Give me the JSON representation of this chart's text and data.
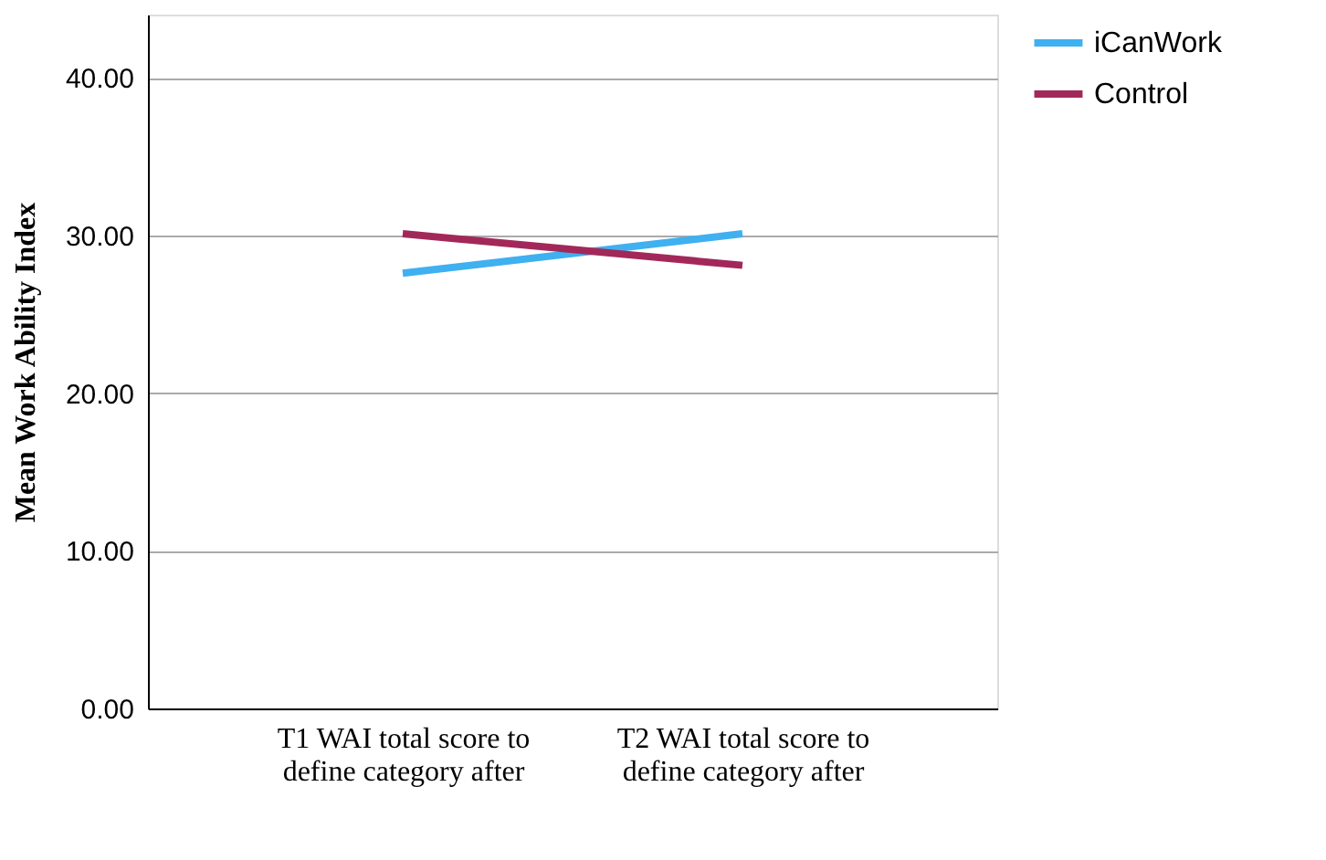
{
  "chart_data": {
    "type": "line",
    "ylabel": "Mean Work Ability Index",
    "categories": [
      "T1 WAI total score to define category after",
      "T2  WAI total score to define category after"
    ],
    "series": [
      {
        "name": "iCanWork",
        "color": "#3fb0f0",
        "values": [
          27.6,
          30.1
        ]
      },
      {
        "name": "Control",
        "color": "#a3285a",
        "values": [
          30.1,
          28.1
        ]
      }
    ],
    "ylim": [
      0,
      44
    ],
    "yticks": [
      {
        "value": 0,
        "label": "0.00"
      },
      {
        "value": 10,
        "label": "10.00"
      },
      {
        "value": 20,
        "label": "20.00"
      },
      {
        "value": 30,
        "label": "30.00"
      },
      {
        "value": 40,
        "label": "40.00"
      }
    ],
    "grid": "y",
    "legend": "top right",
    "marker": "none",
    "line_style": "solid"
  }
}
